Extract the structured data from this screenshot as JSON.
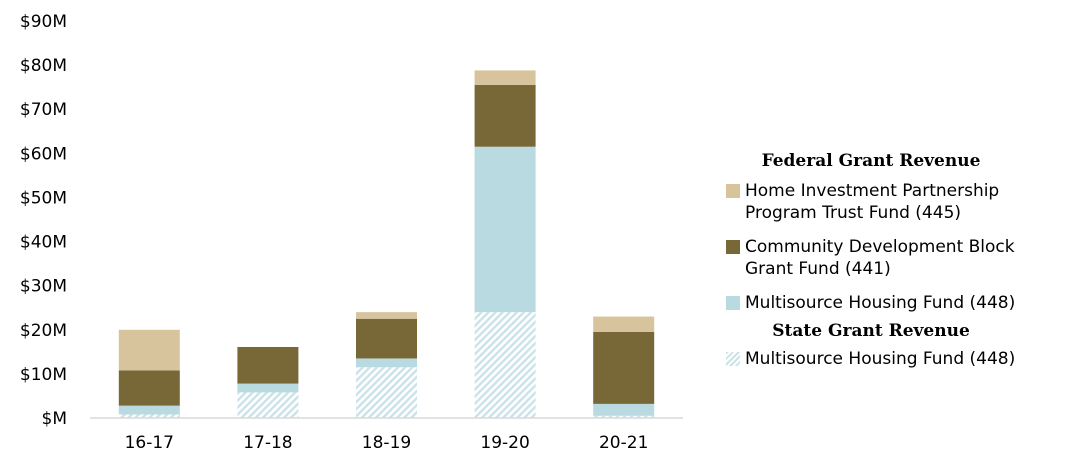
{
  "chart_data": {
    "type": "bar",
    "stacked": true,
    "categories": [
      "16-17",
      "17-18",
      "18-19",
      "19-20",
      "20-21"
    ],
    "y_tick_labels": [
      "$M",
      "$10M",
      "$20M",
      "$30M",
      "$40M",
      "$50M",
      "$60M",
      "$70M",
      "$80M",
      "$90M"
    ],
    "ylim": [
      0,
      90
    ],
    "y_unit": "$M",
    "grid": false,
    "legend_position": "right",
    "legend_groups": [
      {
        "title": "Federal Grant Revenue"
      },
      {
        "title": "State Grant Revenue"
      }
    ],
    "series": [
      {
        "name": "Multisource Housing Fund (448)",
        "group": "State Grant Revenue",
        "pattern": "hatch",
        "color": "#c9e3e8",
        "values": [
          0.8,
          5.8,
          11.5,
          24.0,
          0.5
        ]
      },
      {
        "name": "Multisource Housing Fund (448)",
        "group": "Federal Grant Revenue",
        "pattern": "solid",
        "color": "#b9dae0",
        "values": [
          2.0,
          2.0,
          2.0,
          37.5,
          2.7
        ]
      },
      {
        "name": "Community Development Block Grant Fund (441)",
        "group": "Federal Grant Revenue",
        "pattern": "solid",
        "color": "#786837",
        "values": [
          8.0,
          8.3,
          9.0,
          14.0,
          16.3
        ]
      },
      {
        "name": "Home Investment Partnership Program Trust Fund (445)",
        "group": "Federal Grant Revenue",
        "pattern": "solid",
        "color": "#d8c49c",
        "values": [
          9.2,
          0,
          1.5,
          3.3,
          3.5
        ]
      }
    ]
  }
}
